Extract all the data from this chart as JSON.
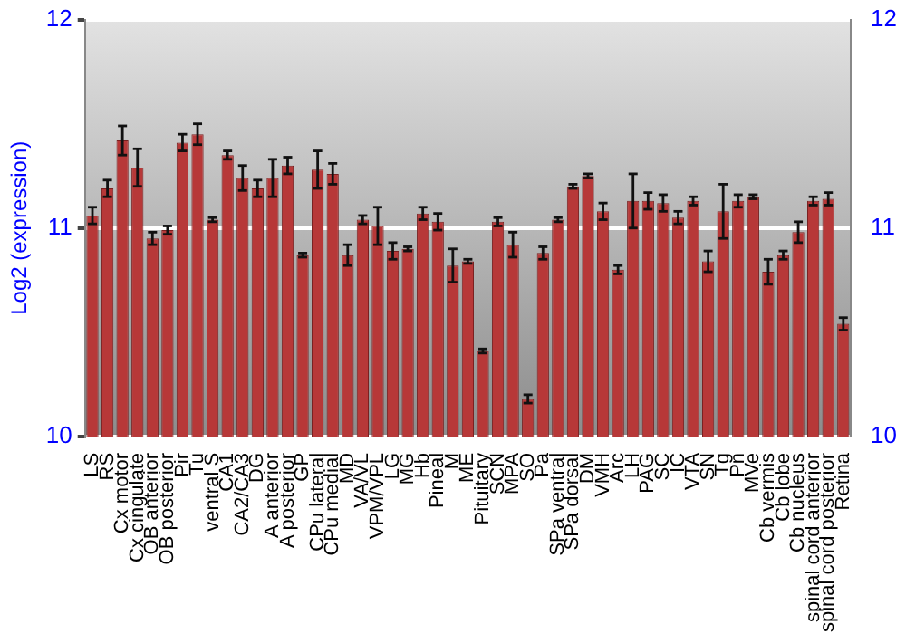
{
  "chart_data": {
    "type": "bar",
    "ylabel": "Log2 (expression)",
    "categories": [
      "LS",
      "RS",
      "Cx motor",
      "Cx cingulate",
      "OB anterior",
      "OB posterior",
      "Pir",
      "Tu",
      "ventral S",
      "CA1",
      "CA2/CA3",
      "DG",
      "A anterior",
      "A posterior",
      "GP",
      "CPu lateral",
      "CPu medial",
      "MD",
      "VA/VL",
      "VPM/VPL",
      "LG",
      "MG",
      "Hb",
      "Pineal",
      "M",
      "ME",
      "Pituitary",
      "SCN",
      "MPA",
      "SO",
      "Pa",
      "SPa ventral",
      "SPa dorsal",
      "DM",
      "VMH",
      "Arc",
      "LH",
      "PAG",
      "SC",
      "IC",
      "VTA",
      "SN",
      "Tg",
      "Pn",
      "MVe",
      "Cb vermis",
      "Cb lobe",
      "Cb nucleus",
      "spinal cord anterior",
      "spinal cord posterior",
      "Retina"
    ],
    "values": [
      11.06,
      11.19,
      11.42,
      11.29,
      10.95,
      10.99,
      11.41,
      11.45,
      11.04,
      11.35,
      11.24,
      11.19,
      11.24,
      11.3,
      10.87,
      11.28,
      11.26,
      10.87,
      11.04,
      11.01,
      10.89,
      10.9,
      11.07,
      11.03,
      10.82,
      10.84,
      10.41,
      11.03,
      10.92,
      10.18,
      10.88,
      11.04,
      11.2,
      11.25,
      11.08,
      10.8,
      11.13,
      11.13,
      11.12,
      11.05,
      11.13,
      10.84,
      11.08,
      11.13,
      11.15,
      10.79,
      10.87,
      10.98,
      11.13,
      11.14,
      10.54
    ],
    "errors": [
      0.04,
      0.04,
      0.07,
      0.09,
      0.03,
      0.02,
      0.04,
      0.05,
      0.01,
      0.02,
      0.06,
      0.04,
      0.09,
      0.04,
      0.01,
      0.09,
      0.05,
      0.05,
      0.02,
      0.09,
      0.04,
      0.01,
      0.03,
      0.04,
      0.08,
      0.01,
      0.01,
      0.02,
      0.06,
      0.02,
      0.03,
      0.01,
      0.01,
      0.01,
      0.04,
      0.02,
      0.13,
      0.04,
      0.04,
      0.03,
      0.02,
      0.05,
      0.13,
      0.03,
      0.01,
      0.06,
      0.02,
      0.05,
      0.02,
      0.03,
      0.03
    ],
    "color": "#b73838",
    "ylim": [
      10,
      12
    ],
    "yticks": [
      10,
      11,
      12
    ],
    "y2lim": [
      10,
      12
    ],
    "y2ticks": [
      10,
      11,
      12
    ],
    "grid": "y"
  }
}
